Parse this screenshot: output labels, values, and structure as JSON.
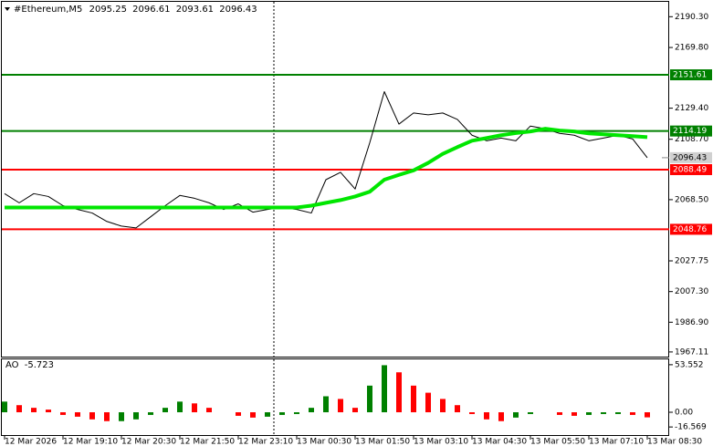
{
  "chart_data": [
    {
      "type": "line",
      "title": "#Ethereum,M5",
      "ohlc": [
        2095.25,
        2096.61,
        2093.61,
        2096.43
      ],
      "categories": [
        "12 Mar 2026",
        null,
        null,
        null,
        "12 Mar 19:10",
        null,
        null,
        null,
        "12 Mar 20:30",
        null,
        null,
        null,
        "12 Mar 21:50",
        null,
        null,
        null,
        "12 Mar 23:10",
        null,
        null,
        null,
        "13 Mar 00:30",
        null,
        null,
        null,
        "13 Mar 01:50",
        null,
        null,
        null,
        "13 Mar 03:10",
        null,
        null,
        null,
        "13 Mar 04:30",
        null,
        null,
        null,
        "13 Mar 05:50",
        null,
        null,
        null,
        "13 Mar 07:10",
        null,
        null,
        null,
        "13 Mar 08:30"
      ],
      "series": [
        {
          "color": "#000000",
          "values": [
            2072.5,
            2066.4,
            2072.5,
            2070.6,
            2064.5,
            2062.0,
            2059.6,
            2054.0,
            2050.9,
            2049.7,
            2057.1,
            2064.5,
            2071.3,
            2069.4,
            2066.4,
            2062.0,
            2065.7,
            2060.2,
            2062.0,
            2063.3,
            2062.0,
            2059.6,
            2081.8,
            2086.7,
            2075.6,
            2106.4,
            2140.4,
            2118.8,
            2126.2,
            2125.0,
            2126.2,
            2121.9,
            2111.4,
            2107.7,
            2109.5,
            2107.7,
            2117.5,
            2115.7,
            2112.6,
            2111.4,
            2107.7,
            2109.5,
            2111.4,
            2108.9,
            2096.43
          ]
        },
        {
          "color": "#00e600",
          "values": [
            2063.3,
            2063.3,
            2063.3,
            2063.3,
            2063.3,
            2063.3,
            2063.3,
            2063.3,
            2063.3,
            2063.3,
            2063.3,
            2063.3,
            2063.3,
            2063.3,
            2063.3,
            2063.3,
            2063.3,
            2063.3,
            2063.3,
            2063.3,
            2063.3,
            2064.5,
            2066.4,
            2068.2,
            2070.6,
            2073.8,
            2081.8,
            2085.0,
            2088.0,
            2093.0,
            2099.0,
            2103.5,
            2107.7,
            2109.5,
            2111.4,
            2112.8,
            2113.9,
            2115.7,
            2114.5,
            2113.9,
            2112.6,
            2112.0,
            2111.4,
            2110.8,
            2110.1
          ]
        }
      ],
      "levels": [
        {
          "value": 2151.61,
          "color": "#008000"
        },
        {
          "value": 2114.19,
          "color": "#008000"
        },
        {
          "value": 2088.49,
          "color": "#ff0000"
        },
        {
          "value": 2048.76,
          "color": "#ff0000"
        }
      ],
      "last": 2096.43,
      "ylim": [
        1963.4,
        2200.2
      ],
      "yticks": [
        {
          "value": 2190.3,
          "label": "2190.30"
        },
        {
          "value": 2169.8,
          "label": "2169.80"
        },
        {
          "value": 2129.4,
          "label": "2129.40"
        },
        {
          "value": 2108.7,
          "label": "2108.70"
        },
        {
          "value": 2068.5,
          "label": "2068.50"
        },
        {
          "value": 2027.75,
          "label": "2027.75"
        },
        {
          "value": 2007.3,
          "label": "2007.30"
        },
        {
          "value": 1986.9,
          "label": "1986.90"
        },
        {
          "value": 1967.11,
          "label": "1967.11"
        }
      ]
    },
    {
      "type": "bar",
      "title": "AO",
      "current": -5.723,
      "up_color": "#008000",
      "down_color": "#ff0000",
      "values": [
        12,
        8,
        5,
        3,
        -3,
        -5,
        -8,
        -10,
        -10,
        -8,
        -3,
        5,
        12,
        10,
        5,
        0,
        -4,
        -6,
        -5,
        -3,
        -2,
        5,
        18,
        15,
        5,
        30,
        53,
        45,
        30,
        22,
        15,
        8,
        -2,
        -8,
        -10,
        -6,
        -2,
        0,
        -3,
        -4,
        -3,
        -2,
        -2,
        -3,
        -5.723
      ],
      "ylim": [
        -26.7,
        59.6
      ],
      "yticks": [
        53.552,
        {
          "value": 0,
          "label": "0.00"
        },
        -16.569
      ]
    }
  ]
}
